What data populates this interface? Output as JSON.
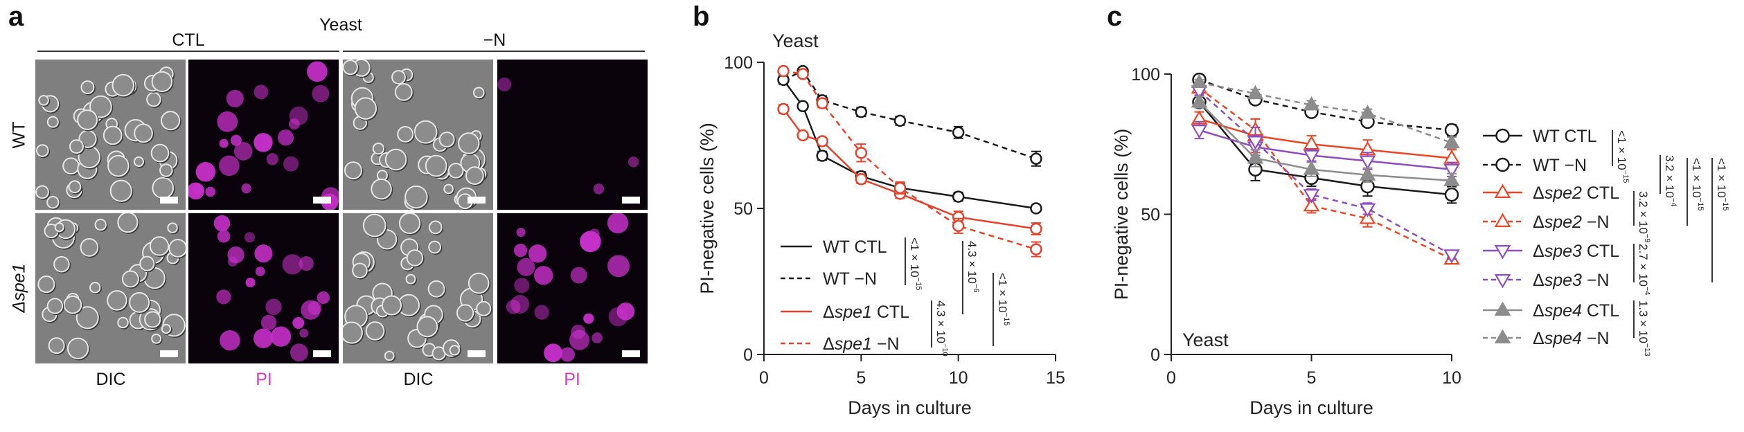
{
  "panel_a": {
    "letter": "a",
    "title": "Yeast",
    "conditions": [
      "CTL",
      "−N"
    ],
    "rows": [
      {
        "label": "WT",
        "italic": false
      },
      {
        "label": "Δspe1",
        "italic": true
      }
    ],
    "columns": [
      "DIC",
      "PI",
      "DIC",
      "PI"
    ],
    "colors": {
      "pi_label": "#d23fb8",
      "pi_signal": "#c530c8",
      "dic_background": "#7f7f7f"
    }
  },
  "chart_data": [
    {
      "letter": "b",
      "type": "line",
      "title": "Yeast",
      "xlabel": "Days in culture",
      "ylabel": "PI-negative cells (%)",
      "xlim": [
        0,
        15
      ],
      "ylim": [
        0,
        100
      ],
      "xticks": [
        "0",
        "5",
        "10",
        "15"
      ],
      "yticks": [
        "0",
        "50",
        "100"
      ],
      "grid": false,
      "legend_placement": "bottom-left",
      "series": [
        {
          "name": "WT CTL",
          "color": "#1a1a1a",
          "dash": false,
          "marker": "circle-open",
          "x": [
            1,
            2,
            3,
            5,
            7,
            10,
            14
          ],
          "y": [
            94,
            85,
            68,
            61,
            57,
            54,
            50
          ],
          "err": [
            1.5,
            1,
            1.5,
            1.5,
            1.5,
            1.5,
            1
          ]
        },
        {
          "name": "WT −N",
          "color": "#1a1a1a",
          "dash": true,
          "marker": "circle-open",
          "x": [
            1,
            2,
            3,
            5,
            7,
            10,
            14
          ],
          "y": [
            94,
            97,
            87,
            83,
            80,
            76,
            67
          ],
          "err": [
            1,
            1,
            1.5,
            1.5,
            1.5,
            2,
            2.5
          ]
        },
        {
          "name": "Δspe1 CTL",
          "color": "#e8402a",
          "dash": false,
          "marker": "circle-open",
          "x": [
            1,
            2,
            3,
            5,
            7,
            10,
            14
          ],
          "y": [
            84,
            75,
            73,
            60,
            55,
            47,
            43
          ],
          "err": [
            1.5,
            1,
            1,
            1.5,
            1.5,
            2,
            2
          ]
        },
        {
          "name": "Δspe1 −N",
          "color": "#e8402a",
          "dash": true,
          "marker": "circle-open",
          "x": [
            1,
            2,
            3,
            5,
            7,
            10,
            14
          ],
          "y": [
            97,
            96,
            86,
            69,
            57,
            44,
            36
          ],
          "err": [
            1,
            1,
            1.5,
            3,
            2,
            2.5,
            2.5
          ]
        }
      ],
      "p_values": [
        {
          "base": "<1 × 10",
          "exp": "−15"
        },
        {
          "base": "4.3 × 10",
          "exp": "−10"
        },
        {
          "base": "4.3 × 10",
          "exp": "−6"
        },
        {
          "base": "<1 × 10",
          "exp": "−15"
        }
      ]
    },
    {
      "letter": "c",
      "type": "line",
      "title": "Yeast",
      "xlabel": "Days in culture",
      "ylabel": "PI-negative cells (%)",
      "xlim": [
        0,
        10
      ],
      "ylim": [
        0,
        100
      ],
      "xticks": [
        "0",
        "5",
        "10"
      ],
      "yticks": [
        "0",
        "50",
        "100"
      ],
      "grid": false,
      "legend_placement": "right",
      "series": [
        {
          "name": "WT CTL",
          "color": "#1a1a1a",
          "dash": false,
          "marker": "circle-open",
          "x": [
            1,
            3,
            5,
            7,
            10
          ],
          "y": [
            90,
            66,
            63,
            60,
            57
          ],
          "err": [
            2,
            4,
            3,
            3.5,
            3
          ]
        },
        {
          "name": "WT −N",
          "color": "#1a1a1a",
          "dash": true,
          "marker": "circle-open",
          "x": [
            1,
            3,
            5,
            7,
            10
          ],
          "y": [
            98,
            91,
            86.5,
            83,
            80
          ],
          "err": [
            1,
            1.5,
            1.5,
            1.5,
            2
          ]
        },
        {
          "name": "Δspe2 CTL",
          "color": "#ee4423",
          "dash": false,
          "marker": "triangle-up-open",
          "x": [
            1,
            3,
            5,
            7,
            10
          ],
          "y": [
            84,
            78,
            75,
            73,
            70
          ],
          "err": [
            2.5,
            6,
            3,
            3.5,
            3
          ]
        },
        {
          "name": "Δspe2 −N",
          "color": "#ee4423",
          "dash": true,
          "marker": "triangle-up-open",
          "x": [
            1,
            3,
            5,
            7,
            10
          ],
          "y": [
            95,
            80,
            53,
            48.5,
            34
          ],
          "err": [
            1.5,
            4,
            2.5,
            3,
            1.5
          ]
        },
        {
          "name": "Δspe3 CTL",
          "color": "#8e4dbf",
          "dash": false,
          "marker": "triangle-down-open",
          "x": [
            1,
            3,
            5,
            7,
            10
          ],
          "y": [
            80,
            74,
            71,
            69,
            66
          ],
          "err": [
            3,
            4,
            2,
            3,
            2.5
          ]
        },
        {
          "name": "Δspe3 −N",
          "color": "#8e4dbf",
          "dash": true,
          "marker": "triangle-down-open",
          "x": [
            1,
            3,
            5,
            7,
            10
          ],
          "y": [
            94,
            76,
            57,
            52,
            35.5
          ],
          "err": [
            1.5,
            5,
            2,
            2,
            1.5
          ]
        },
        {
          "name": "Δspe4 CTL",
          "color": "#8c8c8c",
          "dash": false,
          "marker": "triangle-up-filled",
          "x": [
            1,
            3,
            5,
            7,
            10
          ],
          "y": [
            90,
            70,
            66,
            64,
            62
          ],
          "err": [
            2,
            3,
            2.5,
            2.5,
            2.5
          ]
        },
        {
          "name": "Δspe4 −N",
          "color": "#8c8c8c",
          "dash": true,
          "marker": "triangle-up-filled",
          "x": [
            1,
            3,
            5,
            7,
            10
          ],
          "y": [
            97,
            93,
            89,
            86,
            75.5
          ],
          "err": [
            1,
            1.5,
            1.5,
            1.5,
            2
          ]
        }
      ],
      "p_values": [
        {
          "base": "<1 × 10",
          "exp": "−15"
        },
        {
          "base": "3.2 × 10",
          "exp": "−9"
        },
        {
          "base": "2.7 × 10",
          "exp": "−4"
        },
        {
          "base": "1.3 × 10",
          "exp": "−13"
        },
        {
          "base": "3.2 × 10",
          "exp": "−4"
        },
        {
          "base": "<1 × 10",
          "exp": "−15"
        },
        {
          "base": "<1 × 10",
          "exp": "−15"
        }
      ]
    }
  ]
}
